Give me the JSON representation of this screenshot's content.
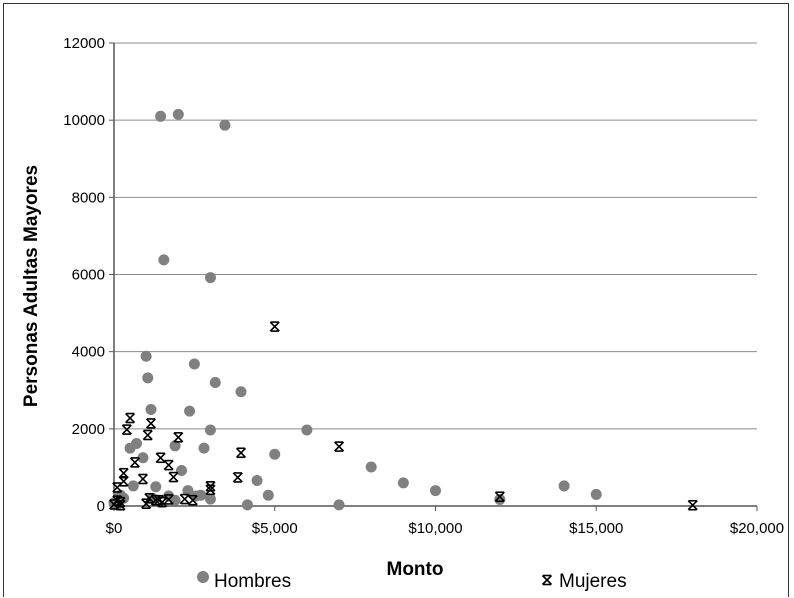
{
  "chart_data": {
    "type": "scatter",
    "xlabel": "Monto",
    "ylabel": "Personas Adultas Mayores",
    "xlim": [
      0,
      20000
    ],
    "ylim": [
      0,
      12000
    ],
    "x_ticks": [
      0,
      5000,
      10000,
      15000,
      20000
    ],
    "x_tick_labels": [
      "$0",
      "$5,000",
      "$10,000",
      "$15,000",
      "$20,000"
    ],
    "y_ticks": [
      0,
      2000,
      4000,
      6000,
      8000,
      10000,
      12000
    ],
    "y_tick_labels": [
      "0",
      "2000",
      "4000",
      "6000",
      "8000",
      "10000",
      "12000"
    ],
    "grid": "horizontal",
    "legend_position": "bottom",
    "series": [
      {
        "name": "Hombres",
        "marker": "circle",
        "color": "#808080",
        "points": [
          [
            1450,
            10100
          ],
          [
            2000,
            10150
          ],
          [
            3450,
            9870
          ],
          [
            1550,
            6380
          ],
          [
            3000,
            5920
          ],
          [
            1000,
            3880
          ],
          [
            2500,
            3680
          ],
          [
            1050,
            3320
          ],
          [
            3150,
            3200
          ],
          [
            3950,
            2960
          ],
          [
            1150,
            2500
          ],
          [
            2350,
            2460
          ],
          [
            3000,
            1970
          ],
          [
            6000,
            1970
          ],
          [
            700,
            1620
          ],
          [
            500,
            1500
          ],
          [
            1900,
            1560
          ],
          [
            2800,
            1500
          ],
          [
            900,
            1250
          ],
          [
            5000,
            1340
          ],
          [
            8000,
            1010
          ],
          [
            2100,
            920
          ],
          [
            4450,
            660
          ],
          [
            9000,
            600
          ],
          [
            10000,
            400
          ],
          [
            14000,
            520
          ],
          [
            15000,
            300
          ],
          [
            12000,
            170
          ],
          [
            4800,
            280
          ],
          [
            1300,
            500
          ],
          [
            600,
            520
          ],
          [
            2300,
            400
          ],
          [
            1700,
            260
          ],
          [
            2550,
            260
          ],
          [
            3000,
            180
          ],
          [
            4150,
            30
          ],
          [
            7000,
            30
          ],
          [
            300,
            200
          ],
          [
            0,
            80
          ],
          [
            100,
            30
          ],
          [
            200,
            280
          ],
          [
            1200,
            200
          ],
          [
            2700,
            280
          ],
          [
            1900,
            150
          ]
        ]
      },
      {
        "name": "Mujeres",
        "marker": "asterisk",
        "color": "#000000",
        "points": [
          [
            5000,
            4650
          ],
          [
            7000,
            1540
          ],
          [
            500,
            2280
          ],
          [
            1150,
            2140
          ],
          [
            400,
            1980
          ],
          [
            1050,
            1840
          ],
          [
            2000,
            1780
          ],
          [
            3950,
            1380
          ],
          [
            1450,
            1250
          ],
          [
            650,
            1130
          ],
          [
            1700,
            1060
          ],
          [
            300,
            850
          ],
          [
            1850,
            750
          ],
          [
            3850,
            740
          ],
          [
            300,
            640
          ],
          [
            100,
            480
          ],
          [
            900,
            700
          ],
          [
            3000,
            510
          ],
          [
            3000,
            420
          ],
          [
            12000,
            240
          ],
          [
            18000,
            20
          ],
          [
            100,
            140
          ],
          [
            200,
            100
          ],
          [
            0,
            40
          ],
          [
            1100,
            200
          ],
          [
            1400,
            150
          ],
          [
            2200,
            180
          ],
          [
            2450,
            150
          ],
          [
            1000,
            60
          ],
          [
            1300,
            150
          ],
          [
            200,
            20
          ],
          [
            1700,
            170
          ],
          [
            1500,
            100
          ]
        ]
      }
    ]
  }
}
